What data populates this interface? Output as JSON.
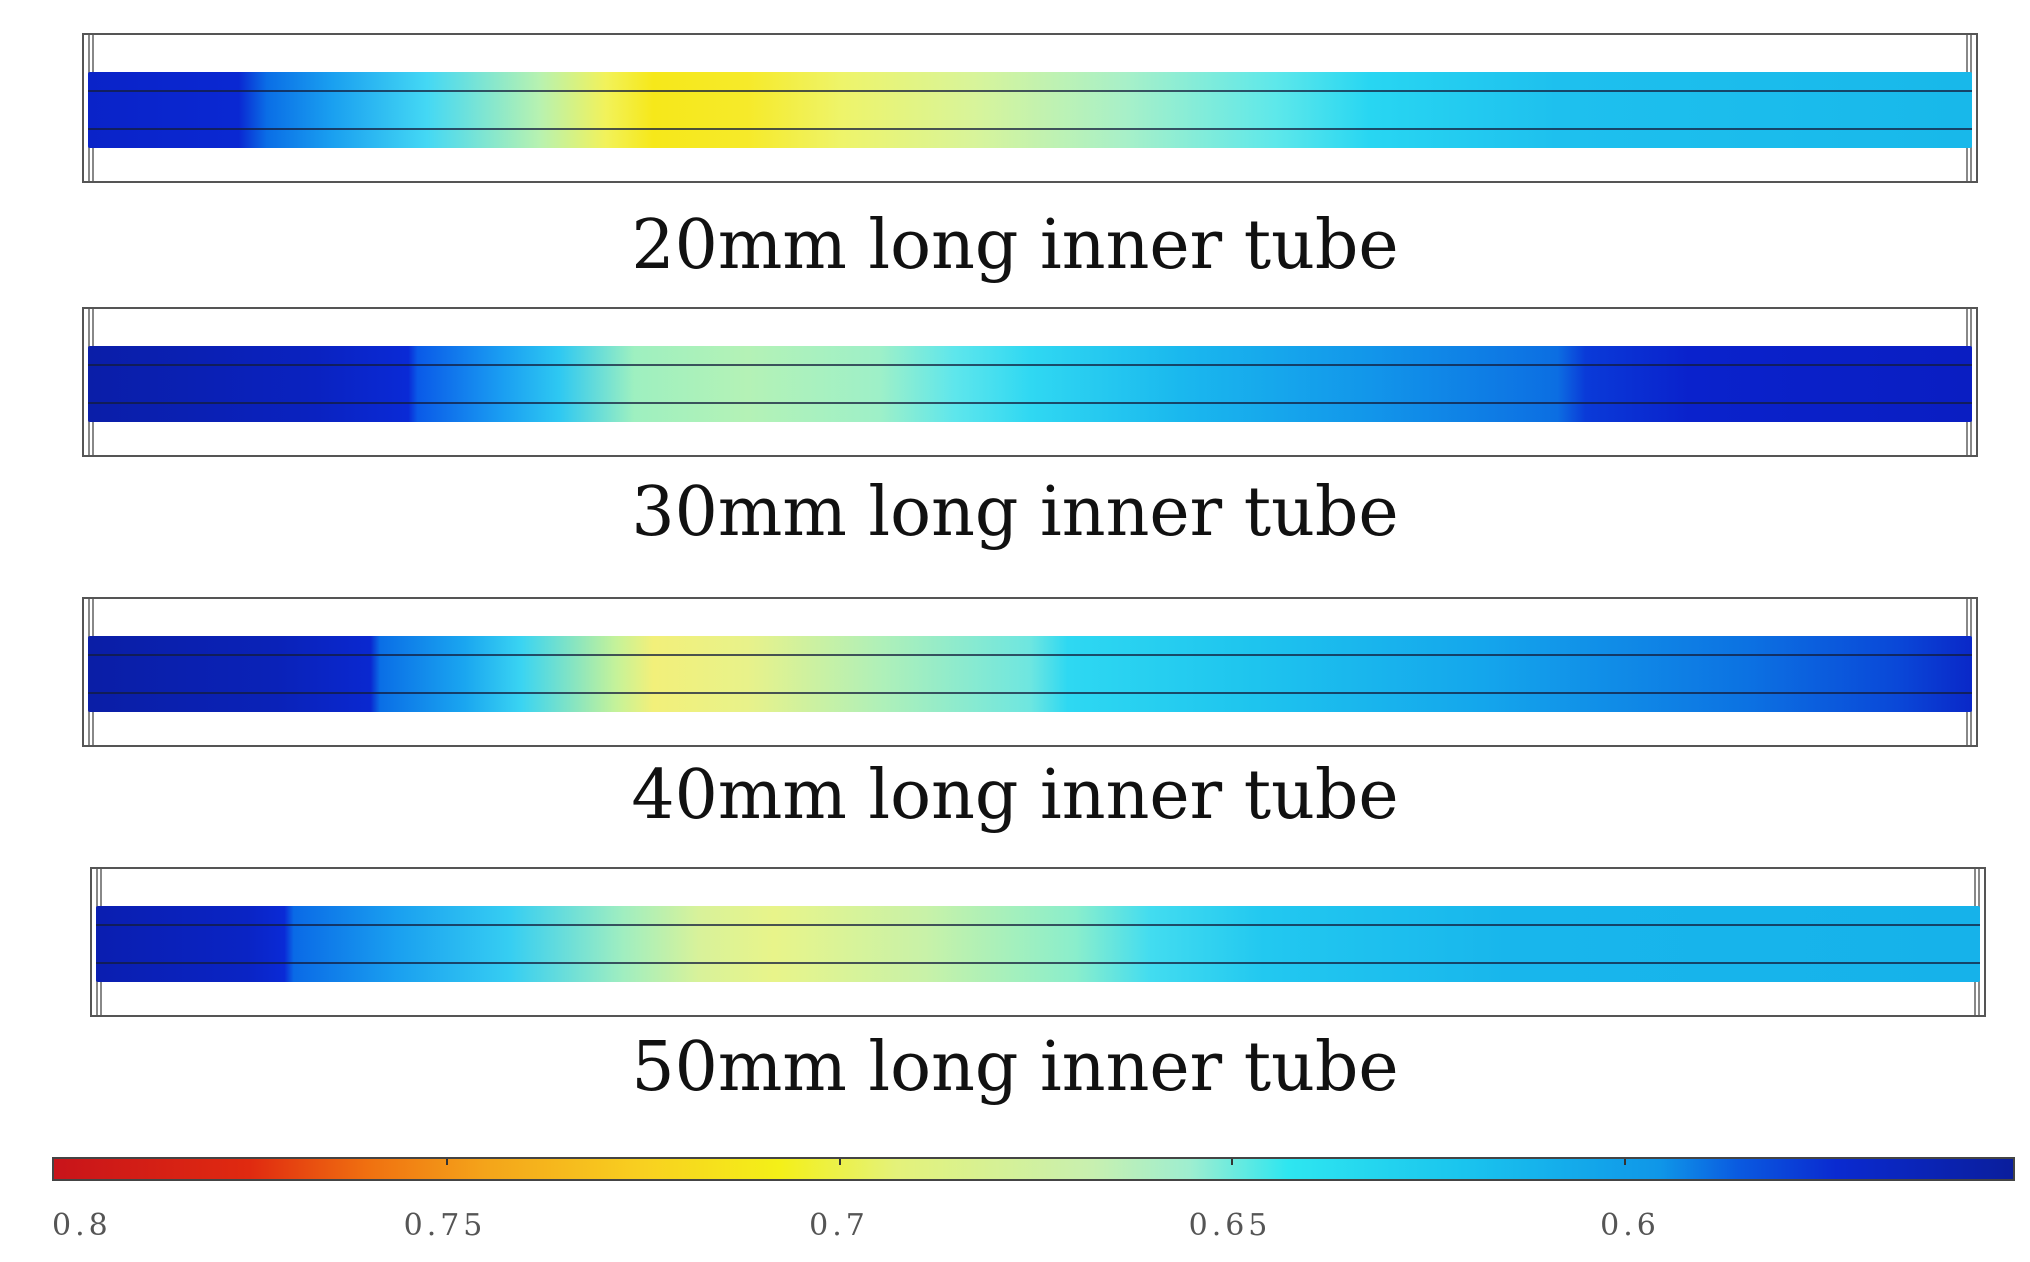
{
  "tubes": [
    {
      "label": "20mm long inner tube",
      "gradient": "linear-gradient(to right, #0a23c8 0%, #0a28d2 8%, #0a6ee6 9.5%, #1aa0f0 13%, #44d8f4 18%, #b8f2b0 24%, #f2f25a 27.5%, #f6e81a 30%, #f6ea2a 35%, #eef46a 40%, #d8f49a 47%, #a8f0c8 55%, #5ee8ea 63%, #28d6f2 68%, #1ec0ee 78%, #18b8ea 100%)"
    },
    {
      "label": "30mm long inner tube",
      "gradient": "linear-gradient(to right, #0a1ea8 0%, #0a22c0 12%, #0a2ad6 17%, #0a5ae8 17.5%, #1a9ef2 22%, #2ec8f2 25%, #9ef0c0 29%, #b4f2b6 35%, #9ef0c8 42%, #5ee6ec 46%, #30d8f2 50%, #1ab8ee 58%, #1296ea 68%, #0c6ee2 78%, #0a3ad8 79.5%, #0a22cc 85%, #0a1ec2 100%)"
    },
    {
      "label": "40mm long inner tube",
      "gradient": "linear-gradient(to right, #0a1ea6 0%, #0a22b8 10%, #0a28d0 15%, #0a6ee6 15.5%, #1aa6f0 20%, #3ad4f2 23%, #c4f29a 28%, #f2f07a 30%, #e8f28a 35%, #b0f0b8 42%, #6ee6e0 50%, #2ed8f2 52%, #1ec4ee 62%, #14a6ec 74%, #0c72e2 88%, #0a48d8 96%, #0a28c8 100%)"
    },
    {
      "label": "50mm long inner tube",
      "gradient": "linear-gradient(to right, #0a1eb0 0%, #0a24c4 8%, #0a2ad6 10%, #0a6ae6 10.5%, #1aa0f0 16%, #36cef2 22%, #a0eec0 28%, #d8f29a 32%, #e8f48a 36%, #c8f2a8 44%, #8aeecc 52%, #42dcf0 56%, #22c8f0 62%, #18b6ec 75%, #16b2ea 100%)"
    }
  ],
  "colorbar": {
    "gradient": "linear-gradient(to right, #c8141a 0%, #e02a10 10%, #f07010 16%, #f4a41a 22%, #f8d020 30%, #f4f018 37%, #e4f27a 43%, #c8f0b0 53%, #9eeed0 58%, #2ee6f0 63%, #1ac4ee 72%, #0f96e8 82%, #0a5ae0 86%, #0a2ad0 91%, #0a1e9c 100%)",
    "ticks": [
      "0.8",
      "0.75",
      "0.7",
      "0.65",
      "0.6"
    ]
  }
}
